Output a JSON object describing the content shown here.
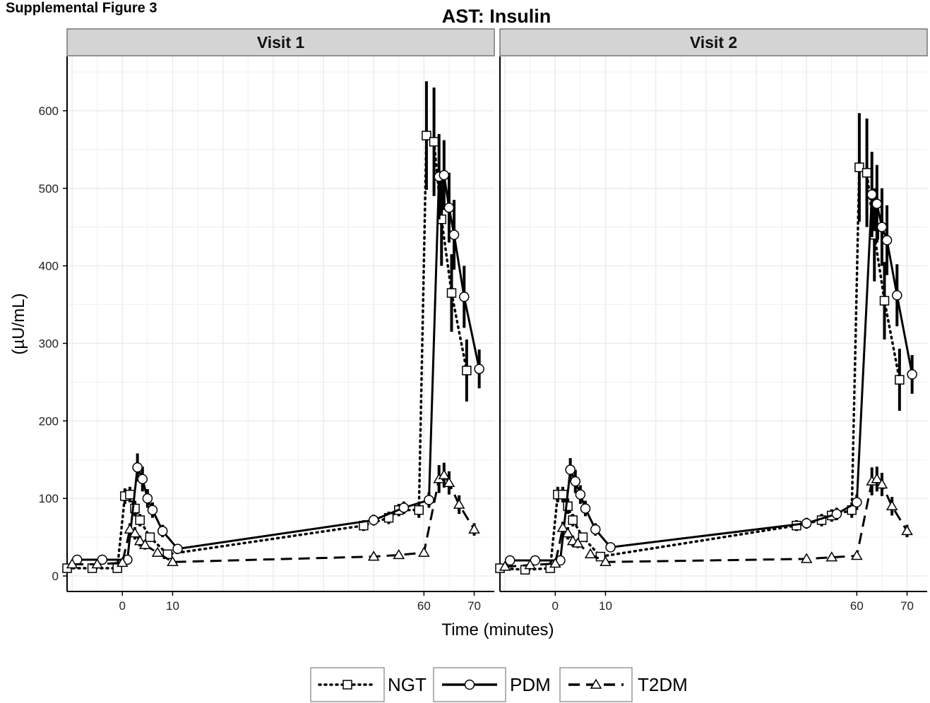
{
  "page_header": "Supplemental Figure 3",
  "chart_data": {
    "type": "line",
    "title": "AST: Insulin",
    "xlabel": "Time (minutes)",
    "ylabel": "(µU/mL)",
    "xlim": [
      -11,
      74
    ],
    "ylim": [
      -20,
      670
    ],
    "x_ticks": [
      0,
      10,
      60,
      70
    ],
    "y_ticks": [
      0,
      100,
      200,
      300,
      400,
      500,
      600
    ],
    "grid": true,
    "legend_position": "bottom",
    "colors": {
      "lines": "#000000",
      "strip": "#d4d4d4",
      "grid": "#ebebeb"
    },
    "panels": [
      {
        "strip": "Visit 1",
        "series": [
          {
            "name": "NGT",
            "line": "dotted",
            "marker": "square",
            "points": [
              {
                "x": -11,
                "y": 10
              },
              {
                "x": -6,
                "y": 10
              },
              {
                "x": -1,
                "y": 10
              },
              {
                "x": 0.5,
                "y": 103,
                "err": 10
              },
              {
                "x": 1.5,
                "y": 105,
                "err": 10
              },
              {
                "x": 2.5,
                "y": 87,
                "err": 10
              },
              {
                "x": 3.5,
                "y": 72,
                "err": 8
              },
              {
                "x": 5.5,
                "y": 50,
                "err": 6
              },
              {
                "x": 9,
                "y": 28,
                "err": 5
              },
              {
                "x": 48,
                "y": 65,
                "err": 7
              },
              {
                "x": 53,
                "y": 75,
                "err": 8
              },
              {
                "x": 55,
                "y": 85,
                "err": 8
              },
              {
                "x": 59,
                "y": 85,
                "err": 10
              },
              {
                "x": 60.5,
                "y": 568,
                "err": 70
              },
              {
                "x": 62,
                "y": 560,
                "err": 70
              },
              {
                "x": 63.5,
                "y": 460,
                "err": 60
              },
              {
                "x": 65.5,
                "y": 365,
                "err": 50
              },
              {
                "x": 68.5,
                "y": 265,
                "err": 40
              }
            ]
          },
          {
            "name": "PDM",
            "line": "solid",
            "marker": "circle",
            "points": [
              {
                "x": -9,
                "y": 21
              },
              {
                "x": -4,
                "y": 21
              },
              {
                "x": 1,
                "y": 21
              },
              {
                "x": 3,
                "y": 140,
                "err": 18
              },
              {
                "x": 4,
                "y": 125,
                "err": 16
              },
              {
                "x": 5,
                "y": 100,
                "err": 12
              },
              {
                "x": 6,
                "y": 85,
                "err": 10
              },
              {
                "x": 8,
                "y": 58,
                "err": 8
              },
              {
                "x": 11,
                "y": 35,
                "err": 5
              },
              {
                "x": 50,
                "y": 72,
                "err": 7
              },
              {
                "x": 56,
                "y": 88,
                "err": 8
              },
              {
                "x": 61,
                "y": 98,
                "err": 10
              },
              {
                "x": 63,
                "y": 515,
                "err": 55
              },
              {
                "x": 64,
                "y": 517,
                "err": 45
              },
              {
                "x": 65,
                "y": 475,
                "err": 45
              },
              {
                "x": 66,
                "y": 440,
                "err": 45
              },
              {
                "x": 68,
                "y": 360,
                "err": 40
              },
              {
                "x": 71,
                "y": 267,
                "err": 25
              }
            ]
          },
          {
            "name": "T2DM",
            "line": "dashed",
            "marker": "triangle",
            "points": [
              {
                "x": -10,
                "y": 15
              },
              {
                "x": -5,
                "y": 15
              },
              {
                "x": 0,
                "y": 17
              },
              {
                "x": 1.5,
                "y": 60,
                "err": 8
              },
              {
                "x": 2.5,
                "y": 55,
                "err": 8
              },
              {
                "x": 3.5,
                "y": 45,
                "err": 7
              },
              {
                "x": 4.5,
                "y": 40,
                "err": 6
              },
              {
                "x": 7,
                "y": 30,
                "err": 5
              },
              {
                "x": 10,
                "y": 18,
                "err": 4
              },
              {
                "x": 50,
                "y": 25,
                "err": 4
              },
              {
                "x": 55,
                "y": 27,
                "err": 4
              },
              {
                "x": 60,
                "y": 30,
                "err": 5
              },
              {
                "x": 63,
                "y": 125,
                "err": 18
              },
              {
                "x": 64,
                "y": 130,
                "err": 16
              },
              {
                "x": 65,
                "y": 120,
                "err": 15
              },
              {
                "x": 67,
                "y": 92,
                "err": 12
              },
              {
                "x": 70,
                "y": 60,
                "err": 8
              }
            ]
          }
        ]
      },
      {
        "strip": "Visit 2",
        "series": [
          {
            "name": "NGT",
            "line": "dotted",
            "marker": "square",
            "points": [
              {
                "x": -11,
                "y": 10
              },
              {
                "x": -6,
                "y": 8
              },
              {
                "x": -1,
                "y": 10
              },
              {
                "x": 0.5,
                "y": 105,
                "err": 10
              },
              {
                "x": 1.5,
                "y": 105,
                "err": 10
              },
              {
                "x": 2.5,
                "y": 90,
                "err": 10
              },
              {
                "x": 3.5,
                "y": 72,
                "err": 8
              },
              {
                "x": 5.5,
                "y": 50,
                "err": 6
              },
              {
                "x": 9,
                "y": 25,
                "err": 5
              },
              {
                "x": 48,
                "y": 65,
                "err": 7
              },
              {
                "x": 53,
                "y": 72,
                "err": 8
              },
              {
                "x": 55,
                "y": 78,
                "err": 8
              },
              {
                "x": 59,
                "y": 85,
                "err": 10
              },
              {
                "x": 60.5,
                "y": 527,
                "err": 70
              },
              {
                "x": 62,
                "y": 520,
                "err": 70
              },
              {
                "x": 63.5,
                "y": 440,
                "err": 60
              },
              {
                "x": 65.5,
                "y": 355,
                "err": 50
              },
              {
                "x": 68.5,
                "y": 253,
                "err": 40
              }
            ]
          },
          {
            "name": "PDM",
            "line": "solid",
            "marker": "circle",
            "points": [
              {
                "x": -9,
                "y": 20
              },
              {
                "x": -4,
                "y": 20
              },
              {
                "x": 1,
                "y": 20
              },
              {
                "x": 3,
                "y": 137,
                "err": 15
              },
              {
                "x": 4,
                "y": 122,
                "err": 15
              },
              {
                "x": 5,
                "y": 105,
                "err": 12
              },
              {
                "x": 6,
                "y": 87,
                "err": 10
              },
              {
                "x": 8,
                "y": 60,
                "err": 8
              },
              {
                "x": 11,
                "y": 37,
                "err": 5
              },
              {
                "x": 50,
                "y": 68,
                "err": 7
              },
              {
                "x": 56,
                "y": 80,
                "err": 8
              },
              {
                "x": 60,
                "y": 95,
                "err": 10
              },
              {
                "x": 63,
                "y": 492,
                "err": 55
              },
              {
                "x": 64,
                "y": 480,
                "err": 50
              },
              {
                "x": 65,
                "y": 450,
                "err": 50
              },
              {
                "x": 66,
                "y": 433,
                "err": 45
              },
              {
                "x": 68,
                "y": 362,
                "err": 40
              },
              {
                "x": 71,
                "y": 260,
                "err": 25
              }
            ]
          },
          {
            "name": "T2DM",
            "line": "dashed",
            "marker": "triangle",
            "points": [
              {
                "x": -10,
                "y": 12
              },
              {
                "x": -5,
                "y": 14
              },
              {
                "x": 0,
                "y": 16
              },
              {
                "x": 1.5,
                "y": 62,
                "err": 8
              },
              {
                "x": 2.5,
                "y": 55,
                "err": 8
              },
              {
                "x": 3.5,
                "y": 45,
                "err": 7
              },
              {
                "x": 4.5,
                "y": 42,
                "err": 6
              },
              {
                "x": 7,
                "y": 28,
                "err": 5
              },
              {
                "x": 10,
                "y": 18,
                "err": 4
              },
              {
                "x": 50,
                "y": 22,
                "err": 4
              },
              {
                "x": 55,
                "y": 24,
                "err": 4
              },
              {
                "x": 60,
                "y": 26,
                "err": 5
              },
              {
                "x": 63,
                "y": 122,
                "err": 18
              },
              {
                "x": 64,
                "y": 125,
                "err": 16
              },
              {
                "x": 65,
                "y": 118,
                "err": 15
              },
              {
                "x": 67,
                "y": 90,
                "err": 12
              },
              {
                "x": 70,
                "y": 58,
                "err": 8
              }
            ]
          }
        ]
      }
    ]
  }
}
